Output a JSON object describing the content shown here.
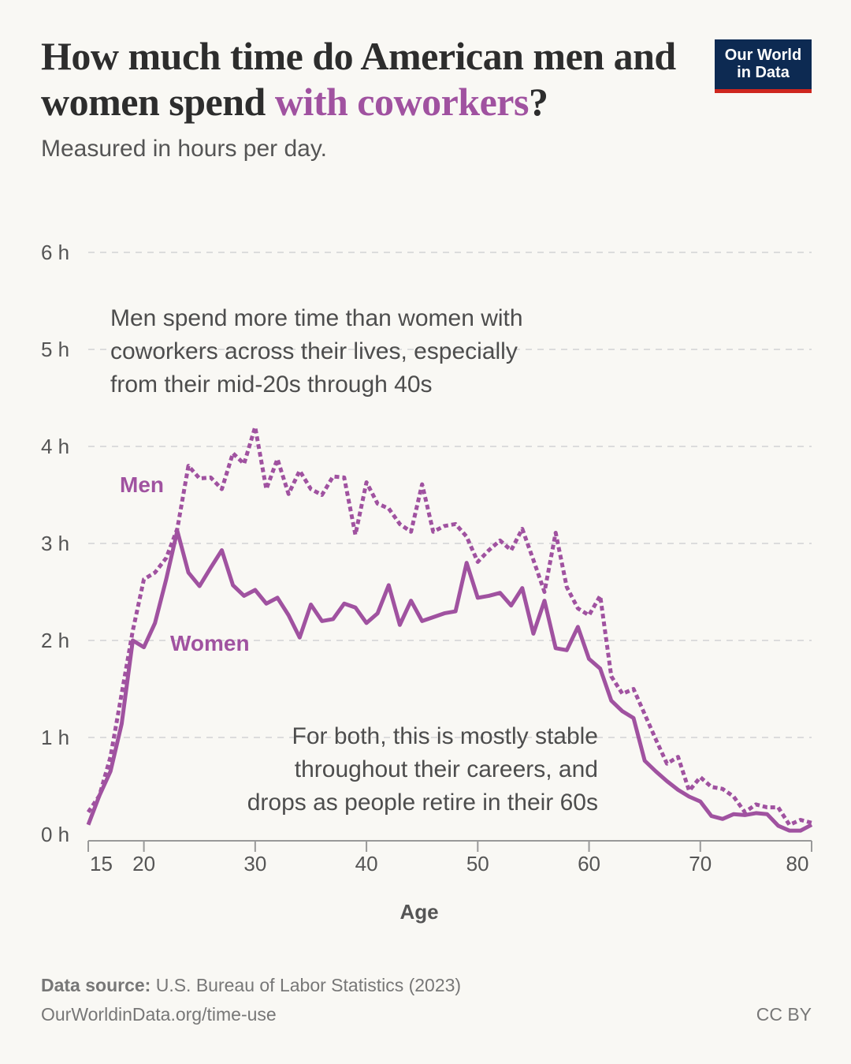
{
  "header": {
    "title_part1": "How much time do American men and women spend ",
    "title_highlight": "with coworkers",
    "title_part2": "?",
    "subtitle": "Measured in hours per day.",
    "logo_line1": "Our World",
    "logo_line2": "in Data"
  },
  "footer": {
    "source_label": "Data source:",
    "source_text": " U.S. Bureau of Labor Statistics (2023)",
    "url": "OurWorldinData.org/time-use",
    "license": "CC BY"
  },
  "colors": {
    "series": "#a052a0",
    "logo_bg": "#0d2a52",
    "logo_accent": "#ce261e"
  },
  "chart_data": {
    "type": "line",
    "title": "How much time do American men and women spend with coworkers?",
    "subtitle": "Measured in hours per day.",
    "xlabel": "Age",
    "ylabel": "",
    "xlim": [
      15,
      80
    ],
    "ylim": [
      0,
      6
    ],
    "grid": "horizontal-dashed",
    "x_ticks": [
      15,
      20,
      30,
      40,
      50,
      60,
      70,
      80
    ],
    "y_ticks": [
      0,
      1,
      2,
      3,
      4,
      5,
      6
    ],
    "y_tick_labels": [
      "0 h",
      "1 h",
      "2 h",
      "3 h",
      "4 h",
      "5 h",
      "6 h"
    ],
    "x": [
      15,
      16,
      17,
      18,
      19,
      20,
      21,
      22,
      23,
      24,
      25,
      26,
      27,
      28,
      29,
      30,
      31,
      32,
      33,
      34,
      35,
      36,
      37,
      38,
      39,
      40,
      41,
      42,
      43,
      44,
      45,
      46,
      47,
      48,
      49,
      50,
      51,
      52,
      53,
      54,
      55,
      56,
      57,
      58,
      59,
      60,
      61,
      62,
      63,
      64,
      65,
      66,
      67,
      68,
      69,
      70,
      71,
      72,
      73,
      74,
      75,
      76,
      77,
      78,
      79,
      80
    ],
    "series": [
      {
        "name": "Men",
        "style": "dotted",
        "values": [
          0.23,
          0.4,
          0.8,
          1.45,
          2.1,
          2.63,
          2.7,
          2.85,
          3.15,
          3.8,
          3.67,
          3.68,
          3.56,
          3.93,
          3.82,
          4.2,
          3.56,
          3.87,
          3.51,
          3.75,
          3.56,
          3.5,
          3.69,
          3.68,
          3.09,
          3.63,
          3.41,
          3.36,
          3.2,
          3.12,
          3.61,
          3.12,
          3.18,
          3.2,
          3.07,
          2.81,
          2.93,
          3.03,
          2.93,
          3.15,
          2.83,
          2.5,
          3.11,
          2.55,
          2.33,
          2.26,
          2.46,
          1.63,
          1.45,
          1.5,
          1.24,
          0.98,
          0.73,
          0.8,
          0.45,
          0.59,
          0.49,
          0.47,
          0.39,
          0.23,
          0.31,
          0.28,
          0.28,
          0.1,
          0.15,
          0.12
        ]
      },
      {
        "name": "Women",
        "style": "solid",
        "values": [
          0.1,
          0.4,
          0.65,
          1.14,
          2.0,
          1.93,
          2.18,
          2.63,
          3.13,
          2.7,
          2.56,
          2.75,
          2.93,
          2.57,
          2.46,
          2.52,
          2.38,
          2.44,
          2.26,
          2.03,
          2.37,
          2.2,
          2.22,
          2.38,
          2.34,
          2.18,
          2.28,
          2.57,
          2.16,
          2.41,
          2.2,
          2.24,
          2.28,
          2.3,
          2.8,
          2.44,
          2.46,
          2.49,
          2.36,
          2.54,
          2.07,
          2.41,
          1.92,
          1.9,
          2.14,
          1.81,
          1.71,
          1.38,
          1.27,
          1.2,
          0.76,
          0.65,
          0.55,
          0.46,
          0.39,
          0.34,
          0.19,
          0.16,
          0.21,
          0.2,
          0.22,
          0.21,
          0.09,
          0.04,
          0.04,
          0.1
        ]
      }
    ],
    "series_labels": {
      "men": "Men",
      "women": "Women"
    },
    "annotations": {
      "top": [
        "Men spend more time than women with",
        "coworkers across their lives, especially",
        "from their mid-20s through 40s"
      ],
      "bottom": [
        "For both, this is mostly stable",
        "throughout their careers, and",
        "drops as people retire in their 60s"
      ]
    }
  }
}
